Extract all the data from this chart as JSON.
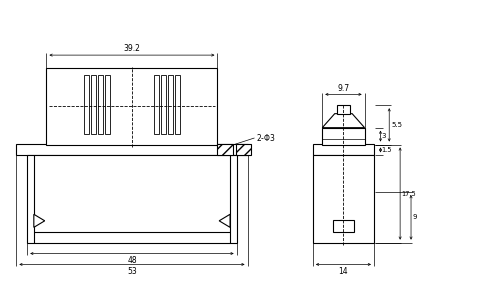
{
  "bg_color": "#ffffff",
  "fig_width": 4.95,
  "fig_height": 2.89,
  "dpi": 100,
  "lw": 0.8,
  "lw_thin": 0.5,
  "lw_dim": 0.5
}
